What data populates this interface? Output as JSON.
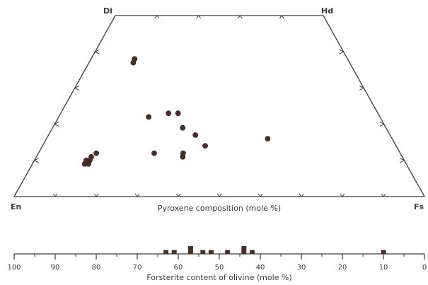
{
  "chart_data": [
    {
      "type": "scatter",
      "subtype": "ternary-trapezoid",
      "vertex_labels": {
        "top_left": "Di",
        "top_right": "Hd",
        "bottom_left": "En",
        "bottom_right": "Fs"
      },
      "xlabel": "Pyroxene composition (mole %)",
      "points": [
        {
          "fs": 17,
          "wo": 37
        },
        {
          "fs": 17,
          "wo": 38
        },
        {
          "fs": 28,
          "wo": 22
        },
        {
          "fs": 34,
          "wo": 23
        },
        {
          "fs": 37,
          "wo": 23
        },
        {
          "fs": 39,
          "wo": 19
        },
        {
          "fs": 43,
          "wo": 17
        },
        {
          "fs": 46,
          "wo": 14
        },
        {
          "fs": 64,
          "wo": 16
        },
        {
          "fs": 16,
          "wo": 12
        },
        {
          "fs": 15,
          "wo": 11
        },
        {
          "fs": 15,
          "wo": 10
        },
        {
          "fs": 14,
          "wo": 10
        },
        {
          "fs": 15,
          "wo": 9
        },
        {
          "fs": 14,
          "wo": 9
        },
        {
          "fs": 32,
          "wo": 12
        },
        {
          "fs": 40,
          "wo": 11
        },
        {
          "fs": 40,
          "wo": 12
        }
      ],
      "grid": false
    },
    {
      "type": "bar",
      "xlabel": "Forsterite content of olivine (mole %)",
      "xlim": [
        100,
        0
      ],
      "ticks": [
        100,
        90,
        80,
        70,
        60,
        50,
        40,
        30,
        20,
        10,
        0
      ],
      "bars": [
        {
          "x": 63,
          "count": 1
        },
        {
          "x": 61,
          "count": 1
        },
        {
          "x": 57,
          "count": 2
        },
        {
          "x": 54,
          "count": 1
        },
        {
          "x": 52,
          "count": 1
        },
        {
          "x": 48,
          "count": 1
        },
        {
          "x": 44,
          "count": 2
        },
        {
          "x": 42,
          "count": 1
        },
        {
          "x": 10,
          "count": 1
        }
      ]
    }
  ]
}
